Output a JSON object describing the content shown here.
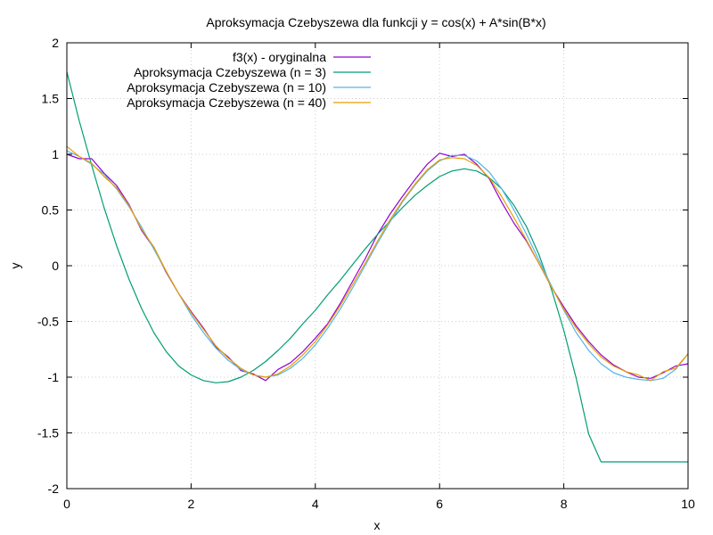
{
  "chart_data": {
    "type": "line",
    "title": "Aproksymacja Czebyszewa dla funkcji y = cos(x) + A*sin(B*x)",
    "xlabel": "x",
    "ylabel": "y",
    "xlim": [
      0,
      10
    ],
    "ylim": [
      -2,
      2
    ],
    "xticks": [
      0,
      2,
      4,
      6,
      8,
      10
    ],
    "xtick_labels": [
      "0",
      "2",
      "4",
      "6",
      "8",
      "10"
    ],
    "yticks": [
      -2,
      -1.5,
      -1,
      -0.5,
      0,
      0.5,
      1,
      1.5,
      2
    ],
    "ytick_labels": [
      "-2",
      "-1.5",
      "-1",
      "-0.5",
      "0",
      "0.5",
      "1",
      "1.5",
      "2"
    ],
    "grid": true,
    "legend_position": "top-left",
    "x": [
      0,
      0.2,
      0.4,
      0.6,
      0.8,
      1,
      1.2,
      1.4,
      1.6,
      1.8,
      2,
      2.2,
      2.4,
      2.6,
      2.8,
      3,
      3.2,
      3.4,
      3.6,
      3.8,
      4,
      4.2,
      4.4,
      4.6,
      4.8,
      5,
      5.2,
      5.4,
      5.6,
      5.8,
      6,
      6.2,
      6.4,
      6.6,
      6.8,
      7,
      7.2,
      7.4,
      7.6,
      7.8,
      8,
      8.2,
      8.4,
      8.6,
      8.8,
      9,
      9.2,
      9.4,
      9.6,
      9.8,
      10
    ],
    "series": [
      {
        "name": "f3(x) - oryginalna",
        "color": "#9400d3",
        "values": [
          1.0,
          0.96,
          0.96,
          0.83,
          0.72,
          0.55,
          0.32,
          0.16,
          -0.06,
          -0.25,
          -0.41,
          -0.56,
          -0.73,
          -0.82,
          -0.94,
          -0.97,
          -1.03,
          -0.93,
          -0.87,
          -0.77,
          -0.65,
          -0.52,
          -0.34,
          -0.14,
          0.06,
          0.28,
          0.46,
          0.62,
          0.77,
          0.91,
          1.01,
          0.98,
          1.0,
          0.91,
          0.78,
          0.57,
          0.38,
          0.22,
          0.02,
          -0.19,
          -0.37,
          -0.54,
          -0.68,
          -0.8,
          -0.89,
          -0.95,
          -1.0,
          -1.01,
          -0.96,
          -0.9,
          -0.88
        ]
      },
      {
        "name": "Aproksymacja Czebyszewa (n = 3)",
        "color": "#009e73",
        "values": [
          1.74,
          1.3,
          0.9,
          0.52,
          0.18,
          -0.12,
          -0.38,
          -0.6,
          -0.77,
          -0.9,
          -0.98,
          -1.03,
          -1.05,
          -1.04,
          -1.0,
          -0.94,
          -0.86,
          -0.76,
          -0.65,
          -0.52,
          -0.4,
          -0.26,
          -0.13,
          0.01,
          0.15,
          0.28,
          0.4,
          0.52,
          0.63,
          0.72,
          0.8,
          0.85,
          0.87,
          0.85,
          0.79,
          0.69,
          0.54,
          0.35,
          0.1,
          -0.21,
          -0.58,
          -1.01,
          -1.51,
          -1.76,
          -1.76,
          -1.76,
          -1.76,
          -1.76,
          -1.76,
          -1.76,
          -1.76
        ]
      },
      {
        "name": "Aproksymacja Czebyszewa (n = 10)",
        "color": "#56b4e9",
        "values": [
          1.03,
          0.98,
          0.91,
          0.82,
          0.69,
          0.53,
          0.35,
          0.15,
          -0.05,
          -0.25,
          -0.44,
          -0.6,
          -0.74,
          -0.85,
          -0.93,
          -0.98,
          -1.0,
          -0.98,
          -0.92,
          -0.83,
          -0.71,
          -0.56,
          -0.39,
          -0.2,
          0.0,
          0.2,
          0.39,
          0.57,
          0.72,
          0.85,
          0.94,
          0.99,
          0.99,
          0.94,
          0.84,
          0.69,
          0.5,
          0.28,
          0.05,
          -0.18,
          -0.4,
          -0.6,
          -0.76,
          -0.88,
          -0.96,
          -1.0,
          -1.02,
          -1.03,
          -1.01,
          -0.93,
          -0.79
        ]
      },
      {
        "name": "Aproksymacja Czebyszewa (n = 40)",
        "color": "#e69f00",
        "values": [
          1.07,
          0.98,
          0.92,
          0.8,
          0.7,
          0.54,
          0.33,
          0.17,
          -0.05,
          -0.25,
          -0.42,
          -0.57,
          -0.72,
          -0.83,
          -0.92,
          -0.98,
          -1.0,
          -0.97,
          -0.9,
          -0.8,
          -0.68,
          -0.53,
          -0.36,
          -0.17,
          0.02,
          0.22,
          0.41,
          0.58,
          0.73,
          0.86,
          0.95,
          0.97,
          0.96,
          0.9,
          0.79,
          0.62,
          0.43,
          0.23,
          0.02,
          -0.19,
          -0.39,
          -0.56,
          -0.7,
          -0.82,
          -0.9,
          -0.95,
          -0.98,
          -1.03,
          -0.95,
          -0.92,
          -0.79
        ]
      }
    ]
  }
}
